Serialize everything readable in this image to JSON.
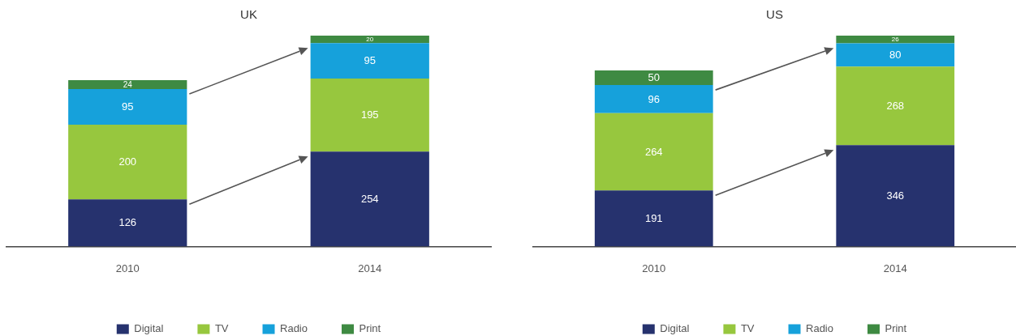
{
  "chart_data": [
    {
      "type": "bar",
      "title": "UK",
      "categories": [
        "2010",
        "2014"
      ],
      "stacked": true,
      "data_labels": true,
      "legend": "bottom",
      "tick_labels": "x",
      "series": [
        {
          "name": "Digital",
          "color": "#26326e",
          "values": [
            126,
            254
          ]
        },
        {
          "name": "TV",
          "color": "#97c73e",
          "values": [
            200,
            195
          ]
        },
        {
          "name": "Radio",
          "color": "#16a1db",
          "values": [
            95,
            95
          ]
        },
        {
          "name": "Print",
          "color": "#3e8a42",
          "values": [
            24,
            20
          ]
        }
      ]
    },
    {
      "type": "bar",
      "title": "US",
      "categories": [
        "2010",
        "2014"
      ],
      "stacked": true,
      "data_labels": true,
      "legend": "bottom",
      "tick_labels": "x",
      "series": [
        {
          "name": "Digital",
          "color": "#26326e",
          "values": [
            191,
            346
          ]
        },
        {
          "name": "TV",
          "color": "#97c73e",
          "values": [
            264,
            268
          ]
        },
        {
          "name": "Radio",
          "color": "#16a1db",
          "values": [
            96,
            80
          ]
        },
        {
          "name": "Print",
          "color": "#3e8a42",
          "values": [
            50,
            26
          ]
        }
      ]
    }
  ]
}
